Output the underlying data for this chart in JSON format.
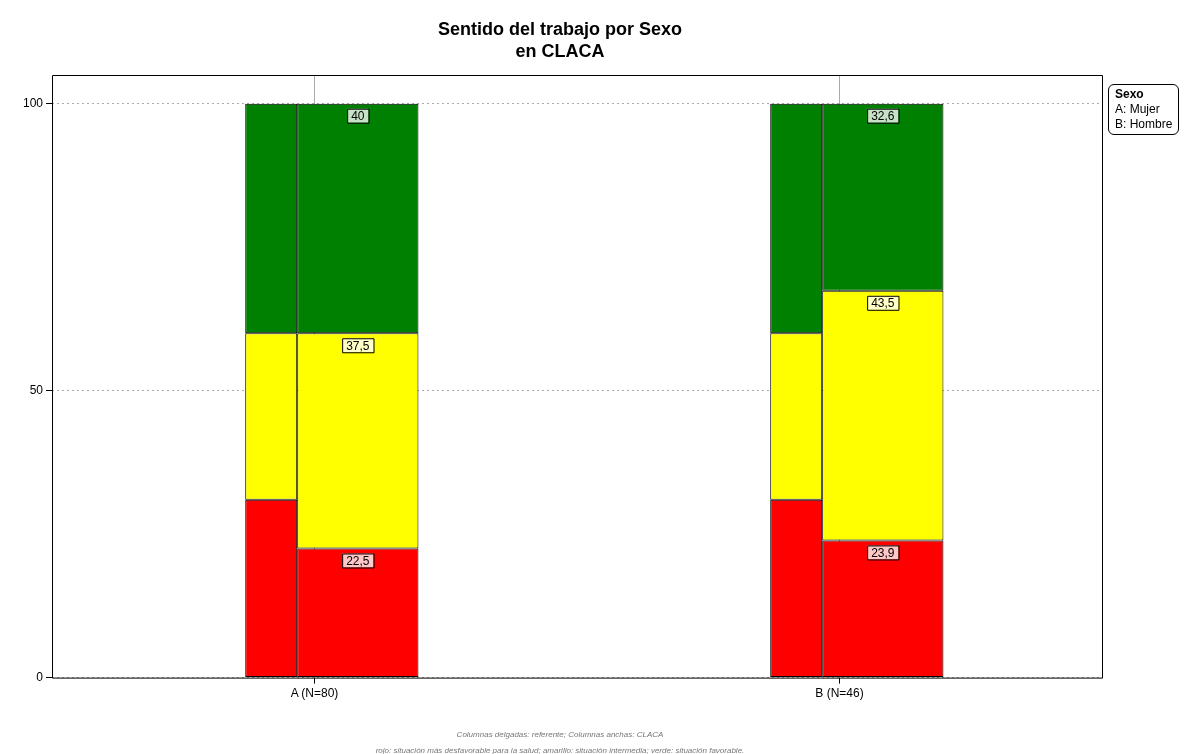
{
  "chart_data": {
    "type": "bar",
    "title": "Sentido del trabajo por Sexo",
    "subtitle": "en CLACA",
    "legend_title": "Sexo",
    "categories": [
      "A (N=80)",
      "B (N=46)"
    ],
    "series": [
      {
        "color": "#ff0000",
        "values": [
          31,
          31
        ],
        "base": [
          0,
          0
        ]
      },
      {
        "color": "#ffff00",
        "values": [
          29,
          29
        ],
        "base": [
          31,
          31
        ]
      },
      {
        "color": "#008000",
        "values": [
          40,
          40
        ],
        "base": [
          60,
          60
        ]
      },
      {
        "color": "#ff0000",
        "values": [
          22.5,
          23.9
        ],
        "base": [
          0,
          0
        ],
        "value_labels": [
          "22,5",
          "23,9"
        ]
      },
      {
        "color": "#ffff00",
        "values": [
          37.5,
          43.5
        ],
        "base": [
          22.5,
          23.9
        ],
        "value_labels": [
          "37,5",
          "43,5"
        ]
      },
      {
        "color": "#008000",
        "values": [
          40,
          32.6
        ],
        "base": [
          60,
          67.4
        ],
        "value_labels": [
          "40",
          "32,6"
        ]
      }
    ],
    "ylim": [
      0,
      105
    ],
    "yticks": [
      0,
      50,
      100
    ],
    "grid": true,
    "legend": false,
    "annotations": [
      "A: Mujer",
      "B: Hombre",
      "Columnas delgadas: referente; Columnas anchas: CLACA",
      "rojo: situación más desfavorable para la salud; amarillo: situación intermedia; verde: situación favorable."
    ]
  }
}
